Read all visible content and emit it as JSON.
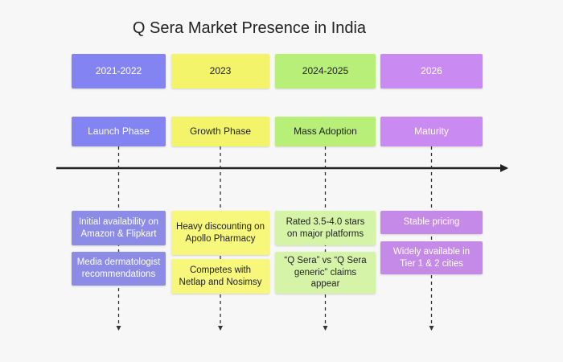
{
  "title": "Q Sera Market Presence in India",
  "columns": [
    {
      "period": "2021-2022",
      "phase": "Launch Phase",
      "notes": [
        "Initial availability on Amazon & Flipkart",
        "Media dermatologist recommendations"
      ]
    },
    {
      "period": "2023",
      "phase": "Growth Phase",
      "notes": [
        "Heavy discounting on Apollo Pharmacy",
        "Competes with Netlap and Nosimsy"
      ]
    },
    {
      "period": "2024-2025",
      "phase": "Mass Adoption",
      "notes": [
        "Rated 3.5-4.0 stars on major platforms",
        "“Q Sera” vs “Q Sera generic” claims appear"
      ]
    },
    {
      "period": "2026",
      "phase": "Maturity",
      "notes": [
        "Stable pricing",
        "Widely available in Tier 1 & 2 cities"
      ]
    }
  ]
}
